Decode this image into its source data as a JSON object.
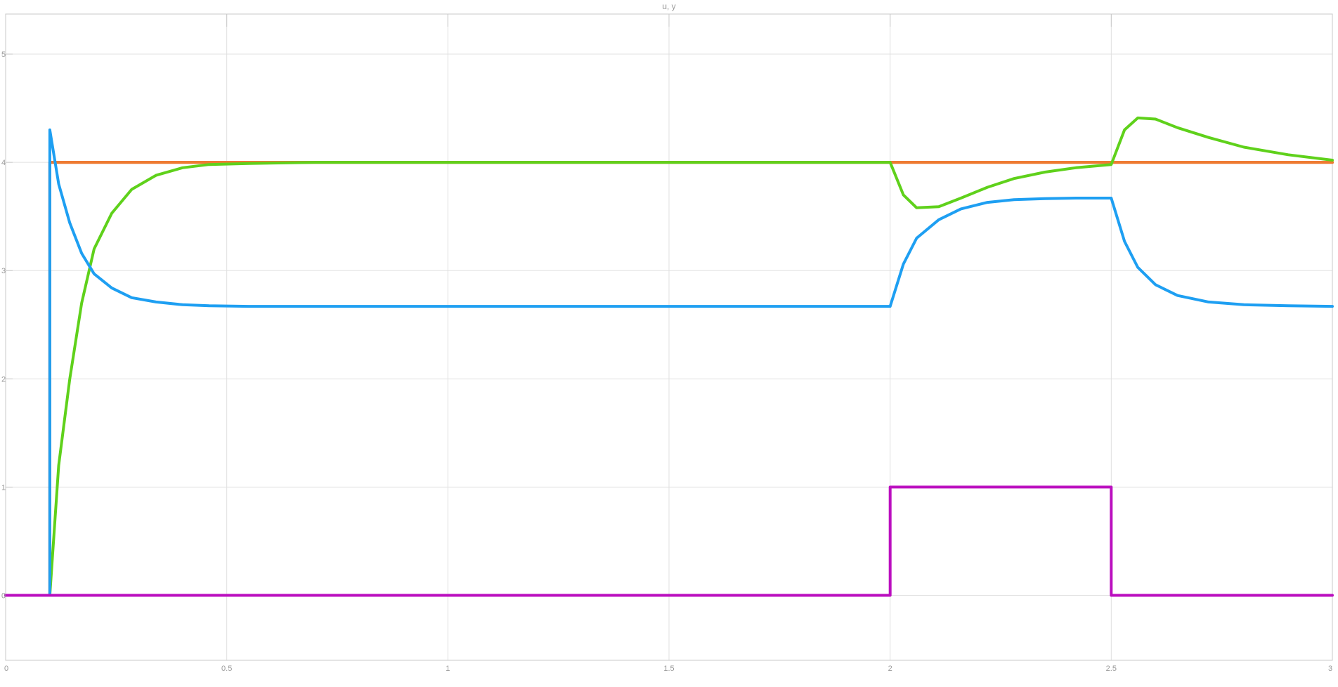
{
  "chart_data": {
    "type": "line",
    "title": "u, y",
    "xlabel": "",
    "ylabel": "",
    "xlim": [
      0,
      3
    ],
    "ylim": [
      -0.6,
      5.37
    ],
    "xticks": [
      0,
      0.5,
      1,
      1.5,
      2,
      2.5,
      3
    ],
    "xtick_labels": [
      "0",
      "0.5",
      "1",
      "1.5",
      "2",
      "2.5",
      "3"
    ],
    "yticks": [
      0,
      1,
      2,
      3,
      4,
      5
    ],
    "ytick_labels": [
      "0",
      "1",
      "2",
      "3",
      "4",
      "5"
    ],
    "grid": true,
    "legend": "none",
    "colors": {
      "background": "#ffffff",
      "grid": "#e0e0e0",
      "axes": "#c8c8c8",
      "text": "#9a9a9a"
    },
    "series": [
      {
        "color": "#e53935",
        "x": [
          0,
          0.1,
          0.1,
          3
        ],
        "values": [
          0,
          0,
          4,
          4
        ]
      },
      {
        "color": "#ee7b30",
        "x": [
          0,
          0.1,
          0.1,
          3
        ],
        "values": [
          0,
          0,
          4,
          4
        ]
      },
      {
        "color": "#5fd11b",
        "x": [
          0,
          0.1,
          0.12,
          0.145,
          0.172,
          0.2,
          0.24,
          0.285,
          0.34,
          0.4,
          0.46,
          0.55,
          0.7,
          1.0,
          1.5,
          2.0,
          2.03,
          2.06,
          2.11,
          2.16,
          2.22,
          2.28,
          2.35,
          2.42,
          2.5,
          2.53,
          2.56,
          2.6,
          2.65,
          2.72,
          2.8,
          2.9,
          3.0
        ],
        "values": [
          0,
          0,
          1.2,
          2.0,
          2.7,
          3.2,
          3.53,
          3.75,
          3.88,
          3.95,
          3.98,
          3.99,
          4.0,
          4.0,
          4.0,
          4.0,
          3.7,
          3.58,
          3.59,
          3.67,
          3.77,
          3.85,
          3.91,
          3.95,
          3.98,
          4.3,
          4.41,
          4.4,
          4.32,
          4.23,
          4.14,
          4.07,
          4.02
        ]
      },
      {
        "color": "#1e9ff2",
        "x": [
          0,
          0.1,
          0.1,
          0.12,
          0.145,
          0.172,
          0.2,
          0.24,
          0.285,
          0.34,
          0.4,
          0.46,
          0.55,
          0.7,
          1.0,
          1.5,
          2.0,
          2.03,
          2.06,
          2.11,
          2.16,
          2.22,
          2.28,
          2.35,
          2.42,
          2.5,
          2.53,
          2.56,
          2.6,
          2.65,
          2.72,
          2.8,
          2.9,
          3.0
        ],
        "values": [
          0,
          0,
          4.3,
          3.8,
          3.44,
          3.16,
          2.97,
          2.84,
          2.75,
          2.71,
          2.685,
          2.675,
          2.67,
          2.67,
          2.67,
          2.67,
          2.67,
          3.06,
          3.3,
          3.47,
          3.57,
          3.63,
          3.655,
          3.665,
          3.67,
          3.67,
          3.27,
          3.03,
          2.87,
          2.77,
          2.71,
          2.685,
          2.675,
          2.67
        ]
      },
      {
        "color": "#bb0fbf",
        "x": [
          0,
          2.0,
          2.0,
          2.5,
          2.5,
          3.0
        ],
        "values": [
          0,
          0,
          1,
          1,
          0,
          0
        ]
      }
    ]
  }
}
